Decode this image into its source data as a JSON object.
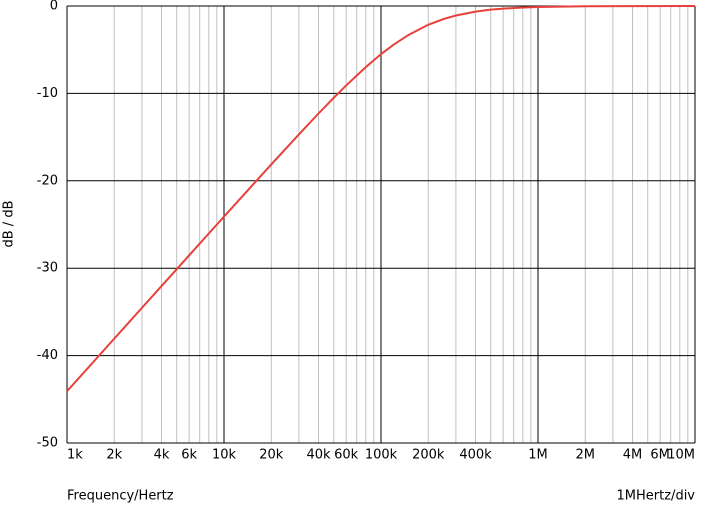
{
  "chart_data": {
    "type": "line",
    "xlabel": "Frequency/Hertz",
    "ylabel": "dB / dB",
    "scale_note": "1MHertz/div",
    "xscale": "log",
    "x": [
      1000,
      1500,
      2000,
      3000,
      4000,
      5000,
      6000,
      8000,
      10000,
      15000,
      20000,
      30000,
      40000,
      50000,
      60000,
      80000,
      100000,
      120000,
      150000,
      200000,
      250000,
      300000,
      400000,
      500000,
      600000,
      800000,
      1000000,
      2000000,
      4000000,
      10000000
    ],
    "series": [
      {
        "color": "#e8403a",
        "values": [
          -44.08,
          -40.56,
          -38.06,
          -34.54,
          -32.04,
          -30.11,
          -28.53,
          -26.03,
          -24.1,
          -20.6,
          -18.13,
          -14.69,
          -12.3,
          -10.51,
          -9.09,
          -6.99,
          -5.51,
          -4.44,
          -3.3,
          -2.15,
          -1.49,
          -1.09,
          -0.64,
          -0.42,
          -0.3,
          -0.17,
          -0.11,
          -0.03,
          -0.01,
          0
        ]
      }
    ],
    "xlim": [
      1000,
      10000000
    ],
    "ylim": [
      -50,
      0
    ],
    "xticks": [
      {
        "value": 1000,
        "label": "1k"
      },
      {
        "value": 2000,
        "label": "2k"
      },
      {
        "value": 4000,
        "label": "4k"
      },
      {
        "value": 6000,
        "label": "6k"
      },
      {
        "value": 10000,
        "label": "10k"
      },
      {
        "value": 20000,
        "label": "20k"
      },
      {
        "value": 40000,
        "label": "40k"
      },
      {
        "value": 60000,
        "label": "60k"
      },
      {
        "value": 100000,
        "label": "100k"
      },
      {
        "value": 200000,
        "label": "200k"
      },
      {
        "value": 400000,
        "label": "400k"
      },
      {
        "value": 1000000,
        "label": "1M"
      },
      {
        "value": 2000000,
        "label": "2M"
      },
      {
        "value": 4000000,
        "label": "4M"
      },
      {
        "value": 6000000,
        "label": "6M"
      },
      {
        "value": 10000000,
        "label": "10M"
      }
    ],
    "xminorticks": [
      3000,
      5000,
      7000,
      8000,
      9000,
      30000,
      50000,
      70000,
      80000,
      90000,
      300000,
      500000,
      600000,
      700000,
      800000,
      900000,
      3000000,
      5000000,
      7000000,
      8000000,
      9000000
    ],
    "yticks": [
      0,
      -10,
      -20,
      -30,
      -40,
      -50
    ],
    "grid": true
  }
}
